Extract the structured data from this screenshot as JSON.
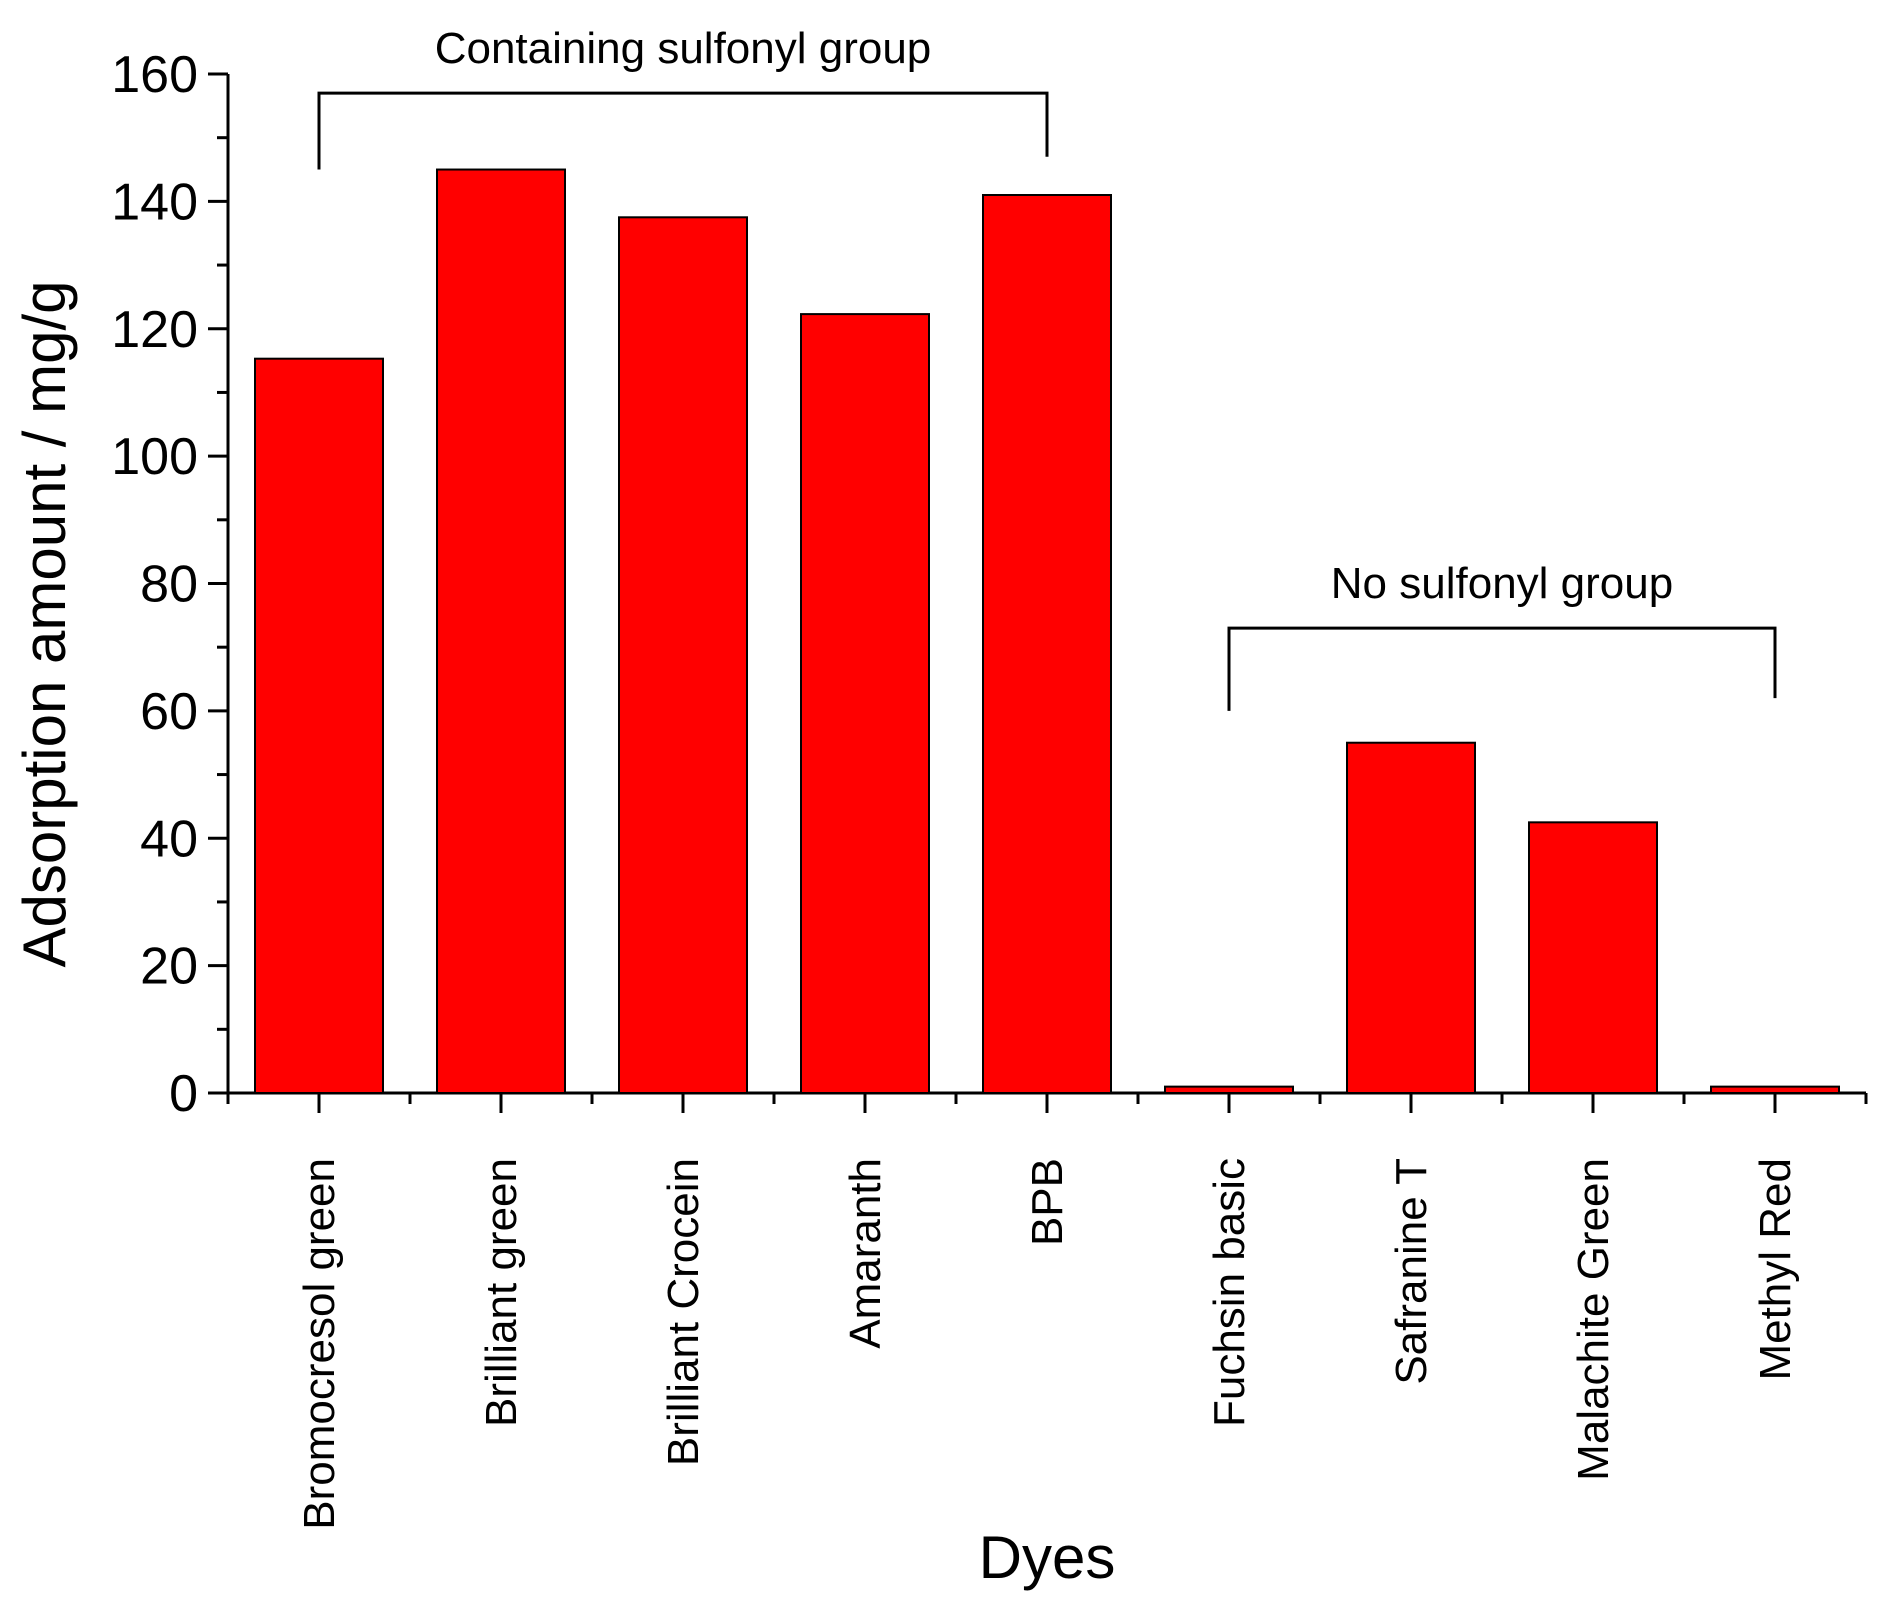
{
  "chart_data": {
    "type": "bar",
    "title": "",
    "xlabel": "Dyes",
    "ylabel": "Adsorption amount / mg/g",
    "ylim": [
      0,
      160
    ],
    "yticks": [
      0,
      20,
      40,
      60,
      80,
      100,
      120,
      140,
      160
    ],
    "grid": false,
    "categories": [
      "Bromocresol green",
      "Brilliant green",
      "Brilliant Crocein",
      "Amaranth",
      "BPB",
      "Fuchsin basic",
      "Safranine T",
      "Malachite Green",
      "Methyl Red"
    ],
    "values": [
      115.3,
      145.0,
      137.5,
      122.3,
      141.0,
      1.0,
      55.0,
      42.5,
      1.0
    ],
    "bar_color": "#ff0000",
    "annotations": [
      {
        "text": "Containing sulfonyl group",
        "from_index": 0,
        "to_index": 4,
        "bracket_level": 157,
        "left_leg_to": 145,
        "right_leg_to": 147
      },
      {
        "text": "No sulfonyl group",
        "from_index": 5,
        "to_index": 8,
        "bracket_level": 73,
        "left_leg_to": 60,
        "right_leg_to": 62
      }
    ]
  }
}
